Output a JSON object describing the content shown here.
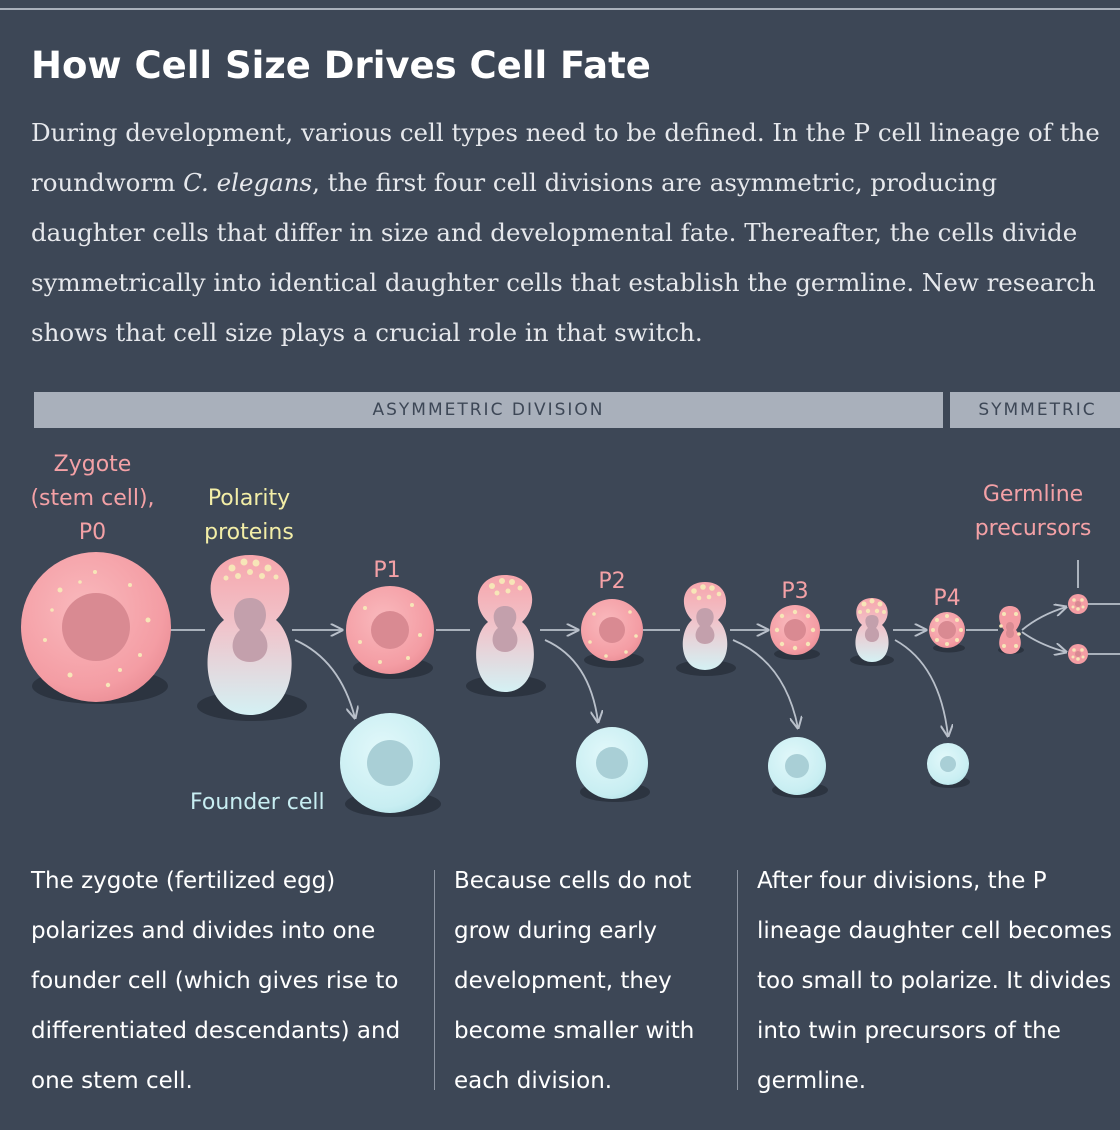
{
  "title": "How Cell Size Drives Cell Fate",
  "intro": {
    "part1": "During development, various cell types need to be defined. In the P cell lineage of the roundworm ",
    "species": "C. elegans",
    "part2": ", the first four cell divisions are asymmetric, producing daughter cells that differ in size and developmental fate. Thereafter, the cells divide symmetrically into identical daughter cells that establish the germline. New research shows that cell size plays a crucial role in that switch."
  },
  "phases": {
    "asymmetric": "ASYMMETRIC DIVISION",
    "symmetric": "SYMMETRIC"
  },
  "labels": {
    "zygote_line1": "Zygote",
    "zygote_line2": "(stem cell),",
    "zygote_line3": "P0",
    "polarity_line1": "Polarity",
    "polarity_line2": "proteins",
    "p1": "P1",
    "p2": "P2",
    "p3": "P3",
    "p4": "P4",
    "germline_line1": "Germline",
    "germline_line2": "precursors",
    "founder": "Founder cell"
  },
  "captions": {
    "col1": "The zygote (fertilized egg) polarizes and divides into one founder cell (which gives rise to differentiated descendants) and one stem cell.",
    "col2": "Because cells do not grow during early development, they become smaller with each division.",
    "col3": "After four divisions, the P lineage daughter cell becomes too small to polarize. It divides into twin precursors of the germline."
  },
  "colors": {
    "background": "#3d4756",
    "stem_cell": "#f6a3aa",
    "founder_cell": "#c8eef2",
    "polarity": "#f7e6b8",
    "label_pink": "#f4a1a6",
    "label_cream": "#f3eea7",
    "label_cyan": "#c8eef2"
  }
}
